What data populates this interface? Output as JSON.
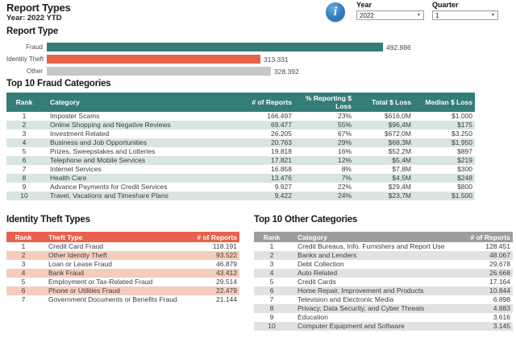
{
  "page": {
    "title": "Report Types",
    "subtitle": "Year: 2022 YTD"
  },
  "filters": {
    "year_label": "Year",
    "year_value": "2022",
    "quarter_label": "Quarter",
    "quarter_value": "1"
  },
  "colors": {
    "teal": "#347D77",
    "orange": "#E8614C",
    "gray_bar": "#C7C7C7",
    "gray_header": "#9D9D9D",
    "teal_stripe": "#D8E5E2",
    "orange_stripe": "#F4CDBE",
    "gray_stripe": "#E2E2E2",
    "info_blue": "#3A80C4"
  },
  "chart_data": {
    "type": "bar",
    "orientation": "horizontal",
    "title": "Report Type",
    "categories": [
      "Fraud",
      "Identity Theft",
      "Other"
    ],
    "values": [
      492886,
      313331,
      328392
    ],
    "value_labels": [
      "492.886",
      "313.331",
      "328.392"
    ],
    "bar_colors": [
      "#347D77",
      "#E8614C",
      "#C7C7C7"
    ],
    "xlim": [
      0,
      492886
    ],
    "grid": false,
    "legend": false
  },
  "fraud_table": {
    "title": "Top 10 Fraud Categories",
    "headers": {
      "rank": "Rank",
      "category": "Category",
      "reports": "# of Reports",
      "pct": "% Reporting $ Loss",
      "total": "Total $ Loss",
      "median": "Median $ Loss"
    },
    "rows": [
      {
        "rank": "1",
        "category": "Imposter Scams",
        "reports": "166.497",
        "pct": "23%",
        "total": "$616,0M",
        "median": "$1.000"
      },
      {
        "rank": "2",
        "category": "Online Shopping and Negative Reviews",
        "reports": "69.477",
        "pct": "55%",
        "total": "$96,4M",
        "median": "$175"
      },
      {
        "rank": "3",
        "category": "Investment Related",
        "reports": "26.205",
        "pct": "67%",
        "total": "$672,0M",
        "median": "$3.250"
      },
      {
        "rank": "4",
        "category": "Business and Job Opportunities",
        "reports": "20.763",
        "pct": "29%",
        "total": "$68,3M",
        "median": "$1.950"
      },
      {
        "rank": "5",
        "category": "Prizes, Sweepstakes and Lotteries",
        "reports": "19.818",
        "pct": "16%",
        "total": "$52,2M",
        "median": "$897"
      },
      {
        "rank": "6",
        "category": "Telephone and Mobile Services",
        "reports": "17.821",
        "pct": "12%",
        "total": "$5,4M",
        "median": "$219"
      },
      {
        "rank": "7",
        "category": "Internet Services",
        "reports": "16.858",
        "pct": "8%",
        "total": "$7,8M",
        "median": "$300"
      },
      {
        "rank": "8",
        "category": "Health Care",
        "reports": "13.476",
        "pct": "7%",
        "total": "$4,5M",
        "median": "$248"
      },
      {
        "rank": "9",
        "category": "Advance Payments for Credit Services",
        "reports": "9.927",
        "pct": "22%",
        "total": "$29,4M",
        "median": "$800"
      },
      {
        "rank": "10",
        "category": "Travel, Vacations and Timeshare Plans",
        "reports": "9.422",
        "pct": "24%",
        "total": "$23,7M",
        "median": "$1.500"
      }
    ]
  },
  "identity_table": {
    "title": "Identity Theft Types",
    "headers": {
      "rank": "Rank",
      "type": "Theft Type",
      "reports": "# of Reports"
    },
    "rows": [
      {
        "rank": "1",
        "type": "Credit Card Fraud",
        "reports": "118.191"
      },
      {
        "rank": "2",
        "type": "Other Identity Theft",
        "reports": "93.522"
      },
      {
        "rank": "3",
        "type": "Loan or Lease Fraud",
        "reports": "46.879"
      },
      {
        "rank": "4",
        "type": "Bank Fraud",
        "reports": "43.412"
      },
      {
        "rank": "5",
        "type": "Employment or Tax-Related Fraud",
        "reports": "29.514"
      },
      {
        "rank": "6",
        "type": "Phone or Utilities Fraud",
        "reports": "22.479"
      },
      {
        "rank": "7",
        "type": "Government Documents or Benefits Fraud",
        "reports": "21.144"
      }
    ]
  },
  "other_table": {
    "title": "Top 10 Other Categories",
    "headers": {
      "rank": "Rank",
      "category": "Category",
      "reports": "# of Reports"
    },
    "rows": [
      {
        "rank": "1",
        "category": "Credit Bureaus, Info. Furnishers and Report Users",
        "reports": "128.451"
      },
      {
        "rank": "2",
        "category": "Banks and Lenders",
        "reports": "48.067"
      },
      {
        "rank": "3",
        "category": "Debt Collection",
        "reports": "29.678"
      },
      {
        "rank": "4",
        "category": "Auto Related",
        "reports": "26.668"
      },
      {
        "rank": "5",
        "category": "Credit Cards",
        "reports": "17.164"
      },
      {
        "rank": "6",
        "category": "Home Repair, Improvement and Products",
        "reports": "10.844"
      },
      {
        "rank": "7",
        "category": "Television and Electronic Media",
        "reports": "6.898"
      },
      {
        "rank": "8",
        "category": "Privacy, Data Security, and Cyber Threats",
        "reports": "4.883"
      },
      {
        "rank": "9",
        "category": "Education",
        "reports": "3.616"
      },
      {
        "rank": "10",
        "category": "Computer Equipment and Software",
        "reports": "3.145"
      }
    ]
  }
}
